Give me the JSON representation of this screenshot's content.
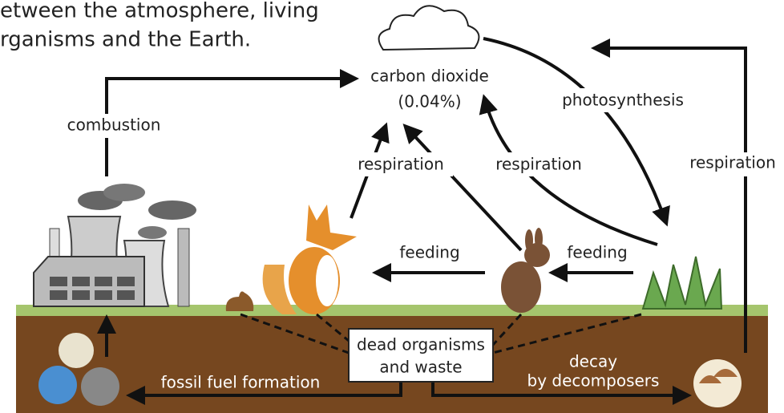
{
  "intro": {
    "lines": [
      "etween the atmosphere, living",
      "rganisms and the Earth."
    ]
  },
  "labels": {
    "carbon_dioxide": "carbon dioxide",
    "co2_share": "(0.04%)",
    "photosynthesis": "photosynthesis",
    "combustion": "combustion",
    "respiration_animals_left": "respiration",
    "respiration_plants": "respiration",
    "respiration_decomposers": "respiration",
    "feeding_fox": "feeding",
    "feeding_rabbit": "feeding",
    "dead_organisms": [
      "dead organisms",
      "and waste"
    ],
    "fossil_fuel_formation": "fossil fuel formation",
    "decay": [
      "decay",
      "by decomposers"
    ]
  }
}
